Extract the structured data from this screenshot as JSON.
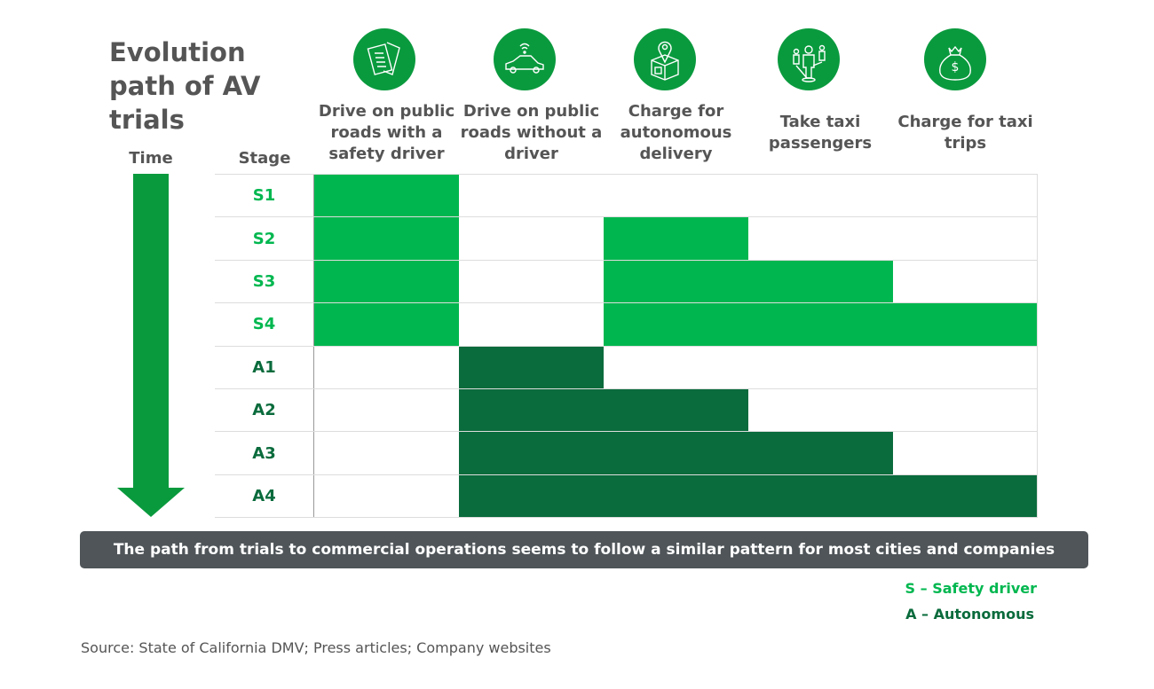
{
  "title": "Evolution path of AV trials",
  "time_label": "Time",
  "stage_label": "Stage",
  "colors": {
    "safety": "#00b74f",
    "autonomous": "#0a6b3c",
    "icon": "#0a9a3e",
    "text": "#555555"
  },
  "columns": [
    {
      "label": "Drive on public roads with a safety driver",
      "icon": "document-checklist-icon"
    },
    {
      "label": "Drive on public roads without a driver",
      "icon": "connected-car-icon"
    },
    {
      "label": "Charge for autonomous delivery",
      "icon": "package-location-icon"
    },
    {
      "label": "Take taxi passengers",
      "icon": "passengers-icon"
    },
    {
      "label": "Charge for taxi trips",
      "icon": "money-bag-icon"
    }
  ],
  "rows": [
    {
      "stage": "S1",
      "type": "safety",
      "cells": [
        1,
        0,
        0,
        0,
        0
      ]
    },
    {
      "stage": "S2",
      "type": "safety",
      "cells": [
        1,
        0,
        1,
        0,
        0
      ]
    },
    {
      "stage": "S3",
      "type": "safety",
      "cells": [
        1,
        0,
        1,
        1,
        0
      ]
    },
    {
      "stage": "S4",
      "type": "safety",
      "cells": [
        1,
        0,
        1,
        1,
        1
      ]
    },
    {
      "stage": "A1",
      "type": "autonomous",
      "cells": [
        0,
        1,
        0,
        0,
        0
      ]
    },
    {
      "stage": "A2",
      "type": "autonomous",
      "cells": [
        0,
        1,
        1,
        0,
        0
      ]
    },
    {
      "stage": "A3",
      "type": "autonomous",
      "cells": [
        0,
        1,
        1,
        1,
        0
      ]
    },
    {
      "stage": "A4",
      "type": "autonomous",
      "cells": [
        0,
        1,
        1,
        1,
        1
      ]
    }
  ],
  "banner": "The path from trials to commercial operations seems to follow a similar pattern for most cities and companies",
  "legend": {
    "safety": "S – Safety driver",
    "autonomous": "A – Autonomous"
  },
  "source": "Source: State of California DMV; Press articles; Company websites"
}
